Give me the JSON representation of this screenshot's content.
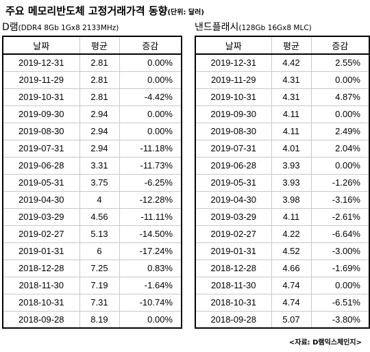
{
  "title": "주요 메모리반도체 고정거래가격 동향",
  "unit": "(단위: 달러)",
  "source": "<자료: D램익스체인지>",
  "dram": {
    "name": "D램",
    "spec": "(DDR4 8Gb 1Gx8  2133MHz)",
    "headers": [
      "날짜",
      "평균",
      "증감"
    ],
    "rows": [
      [
        "2019-12-31",
        "2.81",
        "0.00%"
      ],
      [
        "2019-11-29",
        "2.81",
        "0.00%"
      ],
      [
        "2019-10-31",
        "2.81",
        "-4.42%"
      ],
      [
        "2019-09-30",
        "2.94",
        "0.00%"
      ],
      [
        "2019-08-30",
        "2.94",
        "0.00%"
      ],
      [
        "2019-07-31",
        "2.94",
        "-11.18%"
      ],
      [
        "2019-06-28",
        "3.31",
        "-11.73%"
      ],
      [
        "2019-05-31",
        "3.75",
        "-6.25%"
      ],
      [
        "2019-04-30",
        "4",
        "-12.28%"
      ],
      [
        "2019-03-29",
        "4.56",
        "-11.11%"
      ],
      [
        "2019-02-27",
        "5.13",
        "-14.50%"
      ],
      [
        "2019-01-31",
        "6",
        "-17.24%"
      ],
      [
        "2018-12-28",
        "7.25",
        "0.83%"
      ],
      [
        "2018-11-30",
        "7.19",
        "-1.64%"
      ],
      [
        "2018-10-31",
        "7.31",
        "-10.74%"
      ],
      [
        "2018-09-28",
        "8.19",
        "0.00%"
      ]
    ]
  },
  "nand": {
    "name": "낸드플래시",
    "spec": "(128Gb 16Gx8 MLC)",
    "headers": [
      "날짜",
      "평균",
      "증감"
    ],
    "rows": [
      [
        "2019-12-31",
        "4.42",
        "2.55%"
      ],
      [
        "2019-11-29",
        "4.31",
        "0.00%"
      ],
      [
        "2019-10-31",
        "4.31",
        "4.87%"
      ],
      [
        "2019-09-30",
        "4.11",
        "0.00%"
      ],
      [
        "2019-08-30",
        "4.11",
        "2.49%"
      ],
      [
        "2019-07-31",
        "4.01",
        "2.04%"
      ],
      [
        "2019-06-28",
        "3.93",
        "0.00%"
      ],
      [
        "2019-05-31",
        "3.93",
        "-1.26%"
      ],
      [
        "2019-04-30",
        "3.98",
        "-3.16%"
      ],
      [
        "2019-03-29",
        "4.11",
        "-2.61%"
      ],
      [
        "2019-02-27",
        "4.22",
        "-6.64%"
      ],
      [
        "2019-01-31",
        "4.52",
        "-3.00%"
      ],
      [
        "2018-12-28",
        "4.66",
        "-1.69%"
      ],
      [
        "2018-11-30",
        "4.74",
        "0.00%"
      ],
      [
        "2018-10-31",
        "4.74",
        "-6.51%"
      ],
      [
        "2018-09-28",
        "5.07",
        "-3.80%"
      ]
    ]
  }
}
